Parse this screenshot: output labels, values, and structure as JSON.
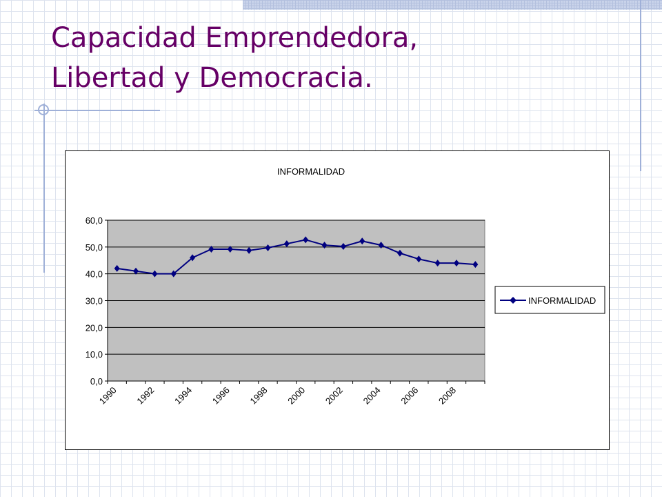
{
  "slide": {
    "title_line1": "Capacidad Emprendedora,",
    "title_line2": "Libertad y Democracia."
  },
  "colors": {
    "title": "#660066",
    "series": "#000080",
    "plot_background": "#c0c0c0",
    "decoration": "#9fb0d8"
  },
  "chart_data": {
    "type": "line",
    "title": "INFORMALIDAD",
    "x": [
      1990,
      1991,
      1992,
      1993,
      1994,
      1995,
      1996,
      1997,
      1998,
      1999,
      2000,
      2001,
      2002,
      2003,
      2004,
      2005,
      2006,
      2007,
      2008,
      2009
    ],
    "x_tick_labels": [
      "1990",
      "1992",
      "1994",
      "1996",
      "1998",
      "2000",
      "2002",
      "2004",
      "2006",
      "2008"
    ],
    "series": [
      {
        "name": "INFORMALIDAD",
        "values": [
          42.0,
          41.0,
          40.0,
          40.0,
          46.0,
          49.2,
          49.2,
          48.7,
          49.7,
          51.2,
          52.7,
          50.7,
          50.2,
          52.2,
          50.7,
          47.7,
          45.5,
          44.0,
          44.0,
          43.5
        ]
      }
    ],
    "y_tick_labels": [
      "0,0",
      "10,0",
      "20,0",
      "30,0",
      "40,0",
      "50,0",
      "60,0"
    ],
    "ylim": [
      0,
      60
    ],
    "y_step": 10,
    "grid": true,
    "legend": "right",
    "marker": "diamond"
  }
}
